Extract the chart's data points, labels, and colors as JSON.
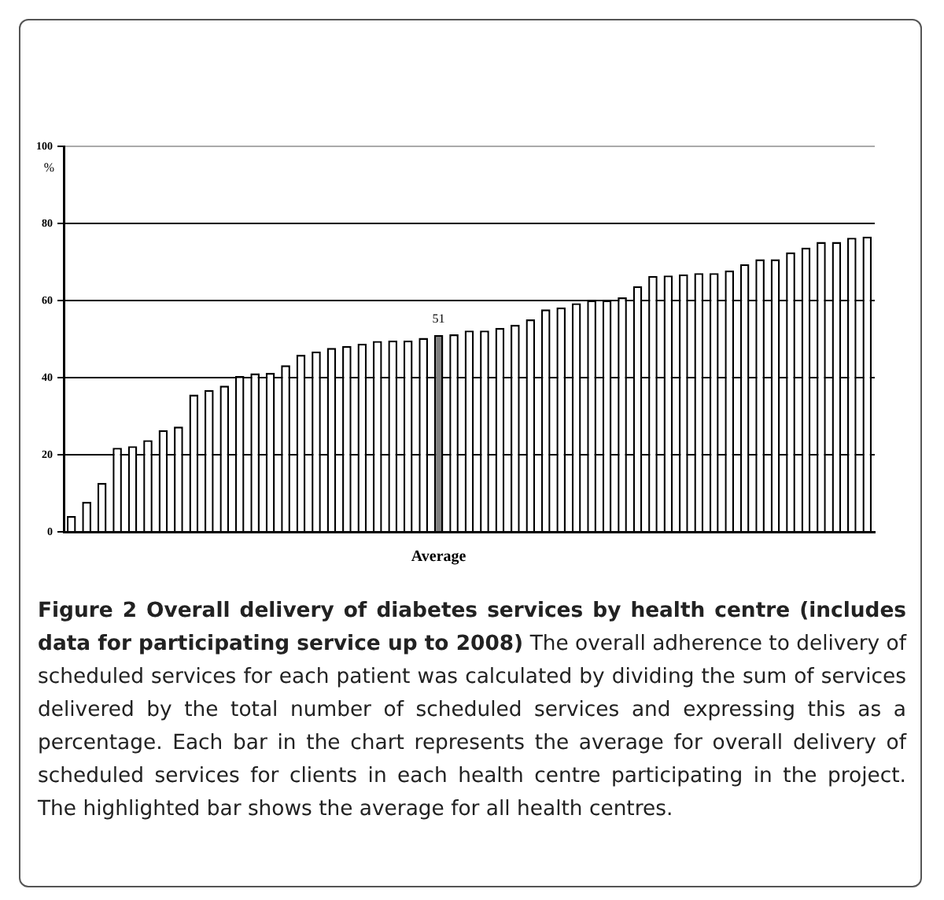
{
  "chart_data": {
    "type": "bar",
    "title": "Figure 2 Overall delivery of diabetes services by health centre (includes data for participating service up to 2008)",
    "ylabel": "%",
    "categories": [
      null,
      null,
      null,
      null,
      null,
      null,
      null,
      null,
      null,
      null,
      null,
      null,
      null,
      null,
      null,
      null,
      null,
      null,
      null,
      null,
      null,
      null,
      null,
      null,
      "Average",
      null,
      null,
      null,
      null,
      null,
      null,
      null,
      null,
      null,
      null,
      null,
      null,
      null,
      null,
      null,
      null,
      null,
      null,
      null,
      null,
      null,
      null,
      null,
      null,
      null,
      null,
      null,
      null
    ],
    "values": [
      4.1,
      7.8,
      12.7,
      21.8,
      22.2,
      23.8,
      26.4,
      27.3,
      35.6,
      36.8,
      37.9,
      40.4,
      41.1,
      41.2,
      43.2,
      45.9,
      46.8,
      47.7,
      48.2,
      48.8,
      49.5,
      49.6,
      49.6,
      50.3,
      51,
      51.2,
      52.2,
      52.2,
      52.9,
      53.7,
      55.1,
      57.7,
      58.2,
      59.3,
      60.1,
      60.1,
      60.8,
      63.7,
      66.4,
      66.5,
      66.8,
      67.1,
      67.1,
      67.8,
      69.4,
      70.7,
      70.7,
      72.5,
      73.7,
      75.2,
      75.2,
      76.3,
      76.6
    ],
    "colors": [
      "#ffffff",
      "#ffffff",
      "#ffffff",
      "#ffffff",
      "#ffffff",
      "#ffffff",
      "#ffffff",
      "#ffffff",
      "#ffffff",
      "#ffffff",
      "#ffffff",
      "#ffffff",
      "#ffffff",
      "#ffffff",
      "#ffffff",
      "#ffffff",
      "#ffffff",
      "#ffffff",
      "#ffffff",
      "#ffffff",
      "#ffffff",
      "#ffffff",
      "#ffffff",
      "#ffffff",
      "#808080",
      "#ffffff",
      "#ffffff",
      "#ffffff",
      "#ffffff",
      "#ffffff",
      "#ffffff",
      "#ffffff",
      "#ffffff",
      "#ffffff",
      "#ffffff",
      "#ffffff",
      "#ffffff",
      "#ffffff",
      "#ffffff",
      "#ffffff",
      "#ffffff",
      "#ffffff",
      "#ffffff",
      "#ffffff",
      "#ffffff",
      "#ffffff",
      "#ffffff",
      "#ffffff",
      "#ffffff",
      "#ffffff",
      "#ffffff",
      "#ffffff",
      "#ffffff"
    ],
    "value_labels": [
      null,
      null,
      null,
      null,
      null,
      null,
      null,
      null,
      null,
      null,
      null,
      null,
      null,
      null,
      null,
      null,
      null,
      null,
      null,
      null,
      null,
      null,
      null,
      null,
      "51",
      null,
      null,
      null,
      null,
      null,
      null,
      null,
      null,
      null,
      null,
      null,
      null,
      null,
      null,
      null,
      null,
      null,
      null,
      null,
      null,
      null,
      null,
      null,
      null,
      null,
      null,
      null,
      null
    ],
    "ylim": [
      0,
      100
    ],
    "yticks": [
      0,
      20,
      40,
      60,
      80,
      100
    ],
    "grid": "y",
    "legend": false,
    "annotations": [
      "The overall adherence to delivery of scheduled services for each patient was calculated by dividing the sum of services delivered by the total number of scheduled services and expressing this as a percentage. Each bar in the chart represents the average for overall delivery of scheduled services for clients in each health centre participating in the project. The highlighted bar shows the average for all health centres."
    ]
  }
}
